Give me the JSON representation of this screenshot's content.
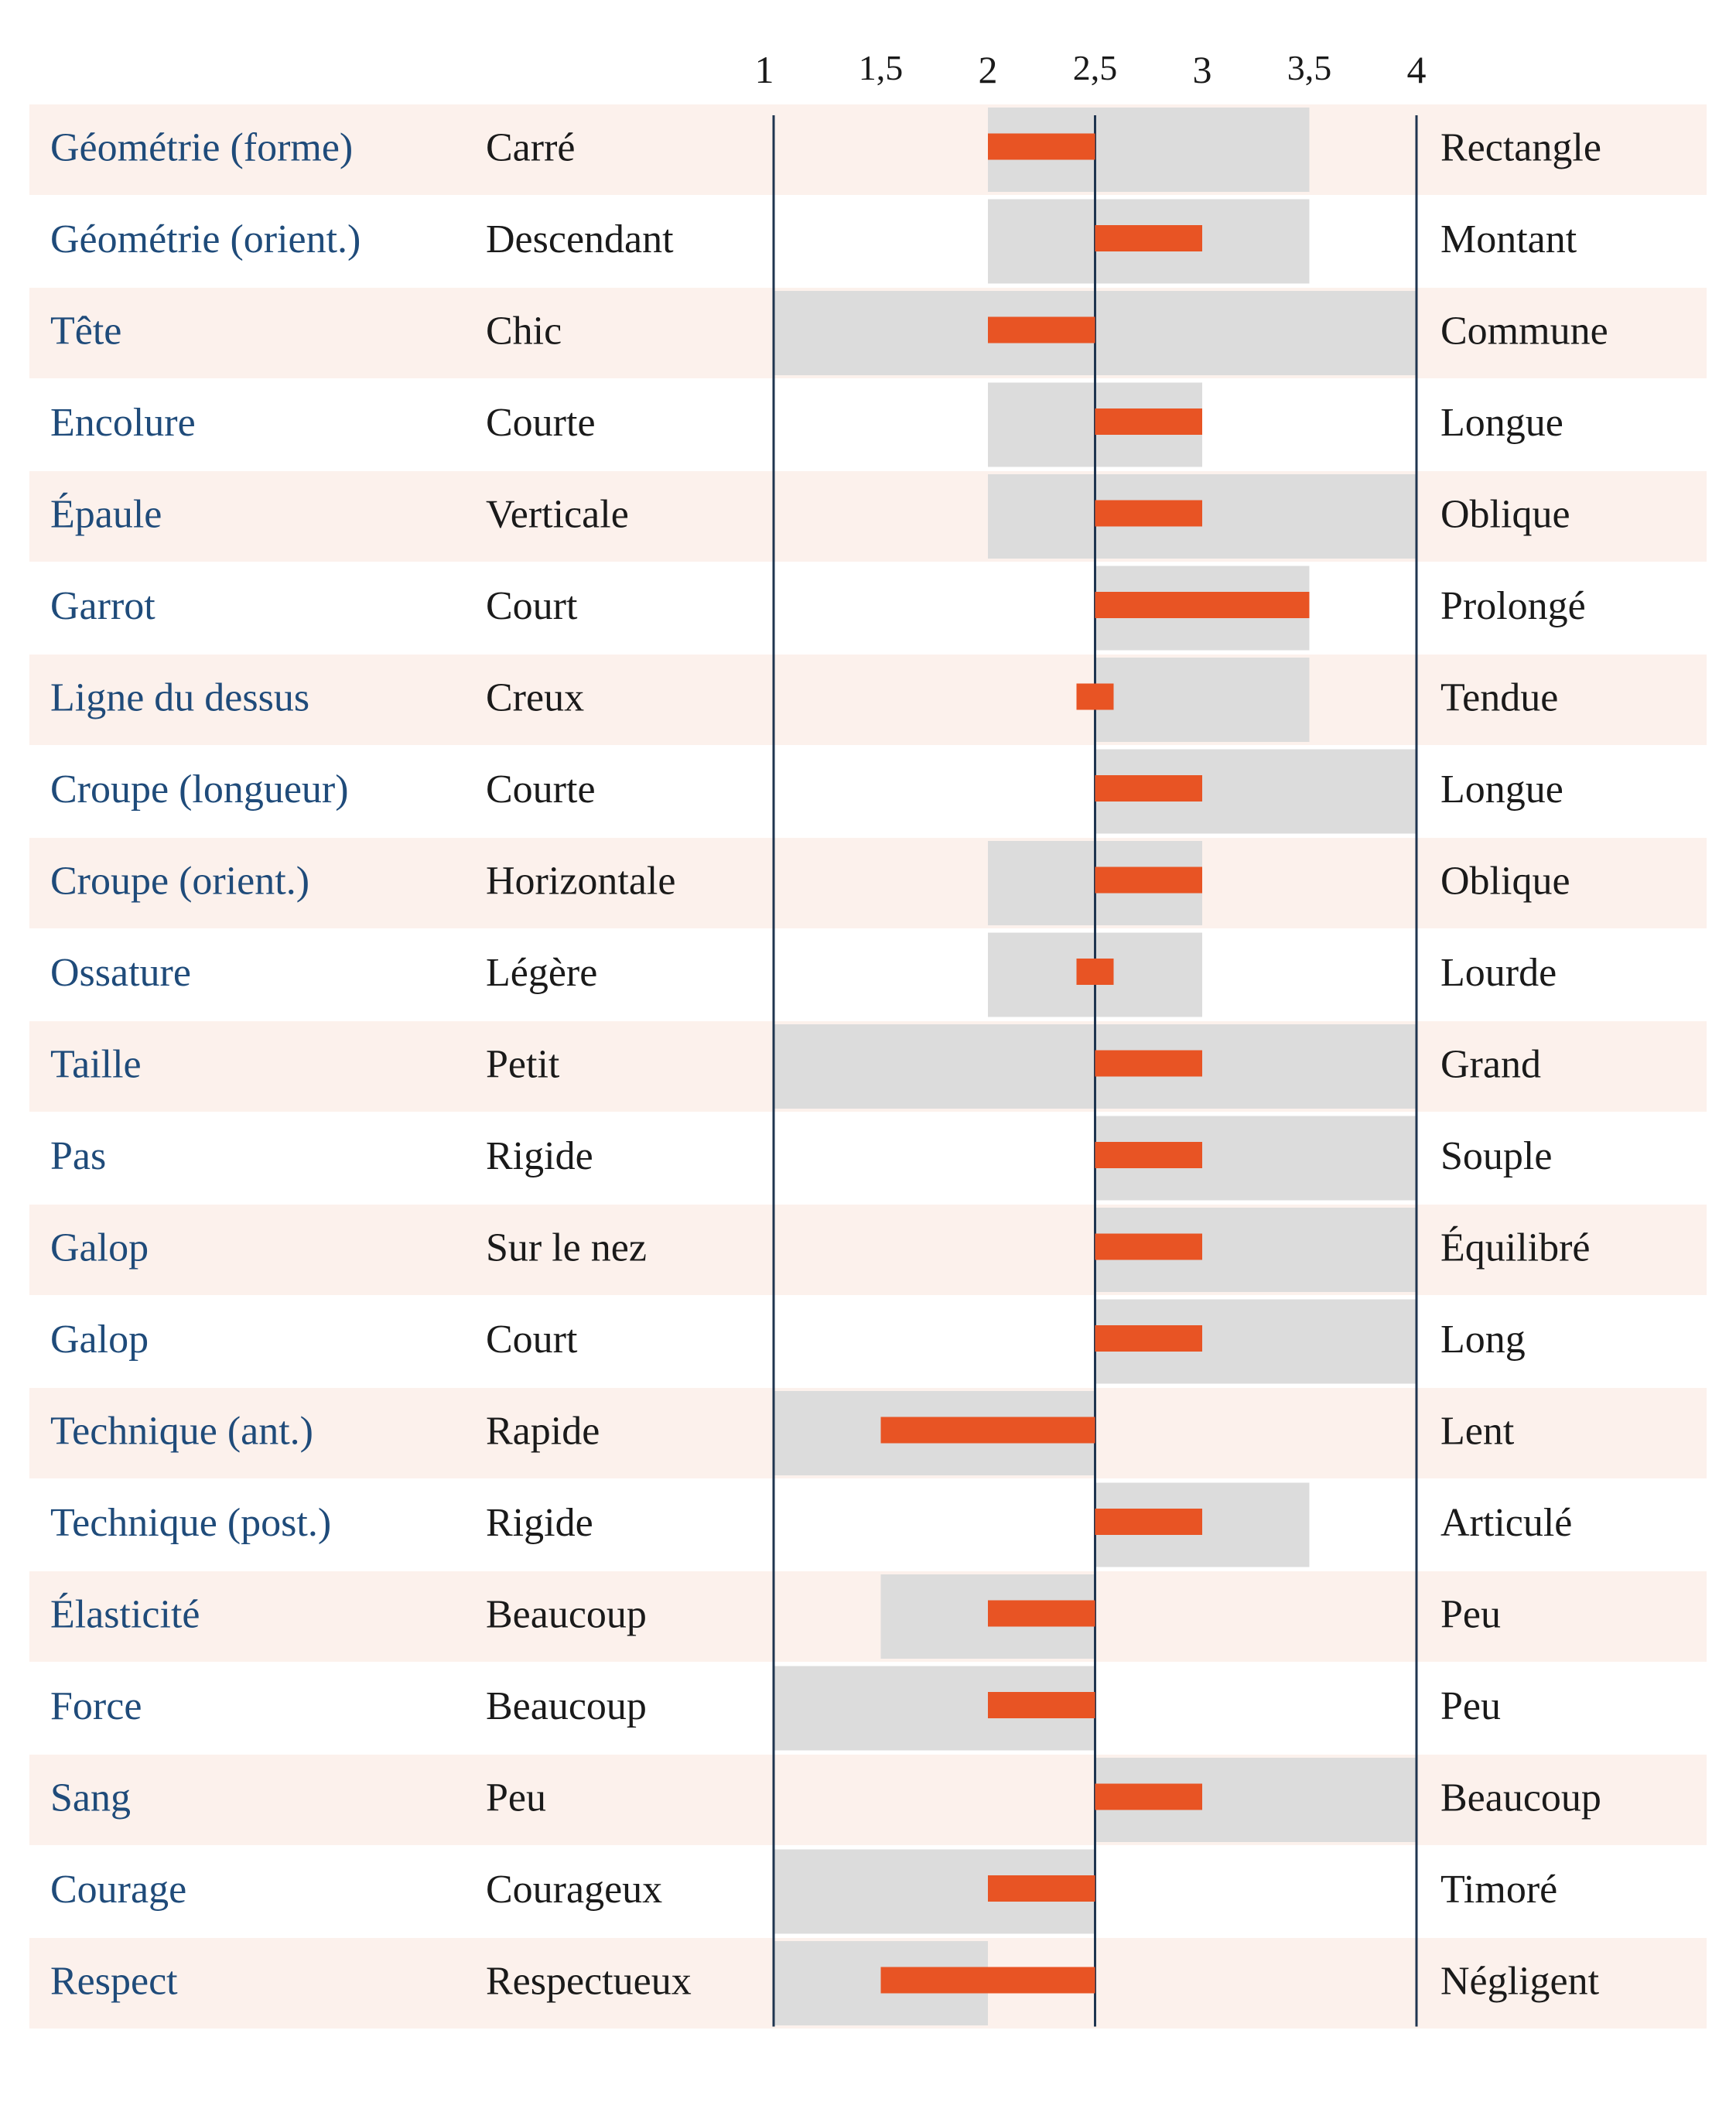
{
  "colors": {
    "row_stripe": "#fcf1ec",
    "range_band": "#dcdcdc",
    "bar": "#e85424",
    "axis_line": "#1f3550",
    "attribute_text": "#1f4b7a",
    "label_text": "#1a1a1a"
  },
  "chart_data": {
    "type": "bar",
    "orientation": "horizontal-diverging",
    "baseline": 2.5,
    "xlim": [
      1,
      4
    ],
    "x_ticks": [
      "1",
      "1,5",
      "2",
      "2,5",
      "3",
      "3,5",
      "4"
    ],
    "x_tick_values": [
      1,
      1.5,
      2,
      2.5,
      3,
      3.5,
      4
    ],
    "rows": [
      {
        "attribute": "Géométrie (forme)",
        "low": "Carré",
        "high": "Rectangle",
        "value": 2,
        "range": [
          2,
          3.5
        ]
      },
      {
        "attribute": "Géométrie (orient.)",
        "low": "Descendant",
        "high": "Montant",
        "value": 3,
        "range": [
          2,
          3.5
        ]
      },
      {
        "attribute": "Tête",
        "low": "Chic",
        "high": "Commune",
        "value": 2,
        "range": [
          1,
          4
        ]
      },
      {
        "attribute": "Encolure",
        "low": "Courte",
        "high": "Longue",
        "value": 3,
        "range": [
          2,
          3
        ]
      },
      {
        "attribute": "Épaule",
        "low": "Verticale",
        "high": "Oblique",
        "value": 3,
        "range": [
          2,
          4
        ]
      },
      {
        "attribute": "Garrot",
        "low": "Court",
        "high": "Prolongé",
        "value": 3.5,
        "range": [
          2.5,
          3.5
        ]
      },
      {
        "attribute": "Ligne du dessus",
        "low": "Creux",
        "high": "Tendue",
        "value": 2.5,
        "range": [
          2.5,
          3.5
        ]
      },
      {
        "attribute": "Croupe (longueur)",
        "low": "Courte",
        "high": "Longue",
        "value": 3,
        "range": [
          2.5,
          4
        ]
      },
      {
        "attribute": "Croupe (orient.)",
        "low": "Horizontale",
        "high": "Oblique",
        "value": 3,
        "range": [
          2,
          3
        ]
      },
      {
        "attribute": "Ossature",
        "low": "Légère",
        "high": "Lourde",
        "value": 2.5,
        "range": [
          2,
          3
        ]
      },
      {
        "attribute": "Taille",
        "low": "Petit",
        "high": "Grand",
        "value": 3,
        "range": [
          1,
          4
        ]
      },
      {
        "attribute": "Pas",
        "low": "Rigide",
        "high": "Souple",
        "value": 3,
        "range": [
          2.5,
          4
        ]
      },
      {
        "attribute": "Galop",
        "low": "Sur le nez",
        "high": "Équilibré",
        "value": 3,
        "range": [
          2.5,
          4
        ]
      },
      {
        "attribute": "Galop",
        "low": "Court",
        "high": "Long",
        "value": 3,
        "range": [
          2.5,
          4
        ]
      },
      {
        "attribute": "Technique (ant.)",
        "low": "Rapide",
        "high": "Lent",
        "value": 1.5,
        "range": [
          1,
          2.5
        ]
      },
      {
        "attribute": "Technique (post.)",
        "low": "Rigide",
        "high": "Articulé",
        "value": 3,
        "range": [
          2.5,
          3.5
        ]
      },
      {
        "attribute": "Élasticité",
        "low": "Beaucoup",
        "high": "Peu",
        "value": 2,
        "range": [
          1.5,
          2.5
        ]
      },
      {
        "attribute": "Force",
        "low": "Beaucoup",
        "high": "Peu",
        "value": 2,
        "range": [
          1,
          2.5
        ]
      },
      {
        "attribute": "Sang",
        "low": "Peu",
        "high": "Beaucoup",
        "value": 3,
        "range": [
          2.5,
          4
        ]
      },
      {
        "attribute": "Courage",
        "low": "Courageux",
        "high": "Timoré",
        "value": 2,
        "range": [
          1,
          2.5
        ]
      },
      {
        "attribute": "Respect",
        "low": "Respectueux",
        "high": "Négligent",
        "value": 1.5,
        "range": [
          1,
          2
        ]
      }
    ]
  }
}
